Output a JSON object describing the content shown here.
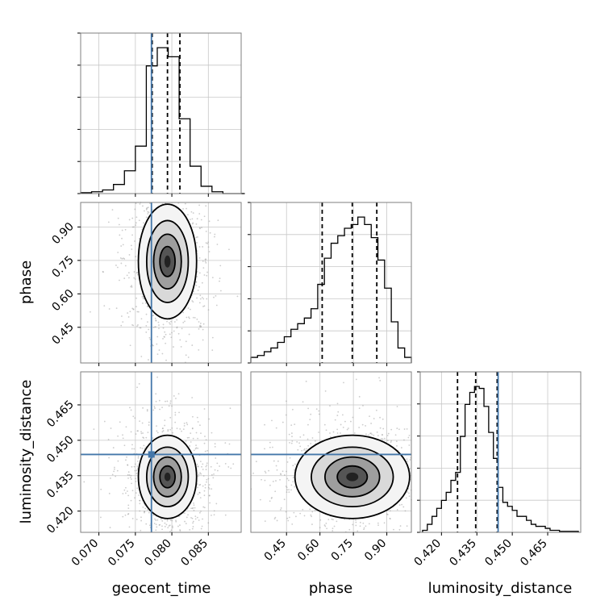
{
  "chart_data": {
    "type": "corner",
    "parameters": [
      {
        "name": "geocent_time",
        "range": [
          0.0675,
          0.0895
        ],
        "ticks": [
          0.07,
          0.075,
          0.08,
          0.085
        ],
        "tick_labels": [
          "0.070",
          "0.075",
          "0.080",
          "0.085"
        ],
        "truth": 0.0772,
        "quantiles": [
          0.0773,
          0.0794,
          0.0811
        ],
        "hist_bins": [
          0.0675,
          0.069,
          0.0705,
          0.072,
          0.0735,
          0.075,
          0.0765,
          0.078,
          0.0795,
          0.081,
          0.0825,
          0.084,
          0.0855,
          0.087,
          0.0885,
          0.09
        ],
        "hist_counts": [
          1,
          2,
          4,
          10,
          25,
          52,
          140,
          160,
          150,
          82,
          30,
          8,
          2,
          0,
          0
        ]
      },
      {
        "name": "phase",
        "range": [
          0.29,
          1.01
        ],
        "ticks": [
          0.45,
          0.6,
          0.75,
          0.9
        ],
        "tick_labels": [
          "0.45",
          "0.60",
          "0.75",
          "0.90"
        ],
        "truth": null,
        "quantiles": [
          0.61,
          0.745,
          0.855
        ],
        "hist_bins": [
          0.29,
          0.32,
          0.35,
          0.38,
          0.41,
          0.44,
          0.47,
          0.5,
          0.53,
          0.56,
          0.59,
          0.62,
          0.65,
          0.68,
          0.71,
          0.74,
          0.77,
          0.8,
          0.83,
          0.86,
          0.89,
          0.92,
          0.95,
          0.98,
          1.01
        ],
        "hist_counts": [
          3,
          4,
          6,
          8,
          11,
          14,
          18,
          21,
          24,
          29,
          42,
          56,
          64,
          68,
          72,
          74,
          78,
          74,
          67,
          55,
          40,
          22,
          8,
          3
        ]
      },
      {
        "name": "luminosity_distance",
        "range": [
          0.411,
          0.479
        ],
        "ticks": [
          0.42,
          0.435,
          0.45,
          0.465
        ],
        "tick_labels": [
          "0.420",
          "0.435",
          "0.450",
          "0.465"
        ],
        "truth": 0.444,
        "quantiles": [
          0.4268,
          0.4345,
          0.4436
        ],
        "hist_bins": [
          0.412,
          0.414,
          0.416,
          0.418,
          0.42,
          0.422,
          0.424,
          0.426,
          0.428,
          0.43,
          0.432,
          0.434,
          0.436,
          0.438,
          0.44,
          0.442,
          0.444,
          0.446,
          0.448,
          0.45,
          0.452,
          0.454,
          0.456,
          0.458,
          0.46,
          0.462,
          0.464,
          0.466,
          0.468,
          0.47,
          0.472,
          0.474,
          0.476,
          0.478
        ],
        "hist_counts": [
          2,
          8,
          16,
          24,
          32,
          40,
          52,
          60,
          96,
          128,
          140,
          146,
          144,
          126,
          100,
          74,
          45,
          30,
          26,
          22,
          16,
          16,
          12,
          8,
          6,
          6,
          4,
          2,
          2,
          1,
          1,
          1,
          1
        ]
      }
    ],
    "truth_point_markers": true,
    "grid": true,
    "colors": {
      "hist": "#000000",
      "truth": "#4477aa",
      "density_dark": "#222222",
      "points": "#9a9a9a"
    },
    "xlabels": [
      "geocent_time",
      "phase",
      "luminosity_distance"
    ],
    "ylabels": [
      "",
      "phase",
      "luminosity_distance"
    ]
  }
}
